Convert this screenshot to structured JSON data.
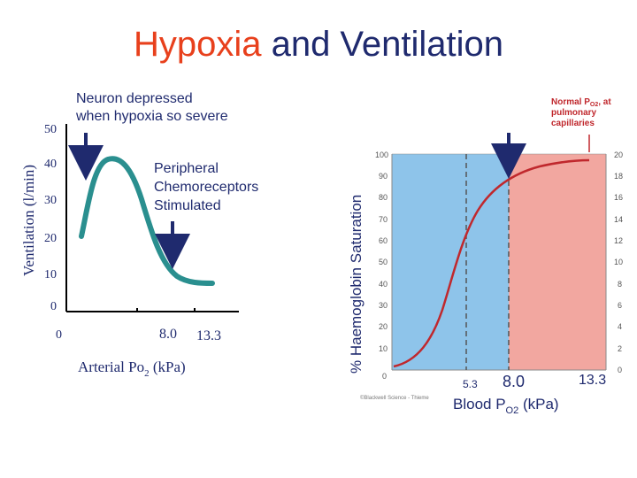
{
  "title": {
    "part1": "Hypoxia",
    "part2": " and Ventilation",
    "part1_color": "#e8401c",
    "part2_color": "#1f2a6e"
  },
  "left_chart": {
    "ylabel": "Ventilation (l/min)",
    "xlabel_main": "Arterial Po",
    "xlabel_sub": "2",
    "xlabel_unit": " (kPa)",
    "y_ticks": [
      "50",
      "40",
      "30",
      "20",
      "10",
      "0"
    ],
    "x_ticks": [
      "0",
      "8.0",
      "13.3"
    ],
    "annotation_depressed": [
      "Neuron depressed",
      "when hypoxia so severe"
    ],
    "annotation_stimulated": [
      "Peripheral",
      "Chemoreceptors",
      "Stimulated"
    ],
    "curve_color": "#2a8f8f"
  },
  "right_chart": {
    "ylabel": "% Haemoglobin Saturation",
    "left_ticks": [
      "100",
      "90",
      "80",
      "70",
      "60",
      "50",
      "40",
      "30",
      "20",
      "10",
      "0"
    ],
    "right_ticks": [
      "20",
      "18",
      "16",
      "14",
      "12",
      "10",
      "8",
      "6",
      "4",
      "2",
      "0"
    ],
    "x_tick_zero": "0",
    "x_ticks": [
      "5.3",
      "8.0",
      "13.3"
    ],
    "xlabel_main": "Blood P",
    "xlabel_sub": "O2",
    "xlabel_unit": " (kPa)",
    "normal_label": [
      "Normal P",
      "O2",
      ", at",
      "pulmonary",
      "capillaries"
    ],
    "credit": "©Blackwell Science - Thieme",
    "blue_region_color": "#8ec4ea",
    "pink_region_color": "#f2a7a0",
    "curve_color": "#c0282d"
  }
}
